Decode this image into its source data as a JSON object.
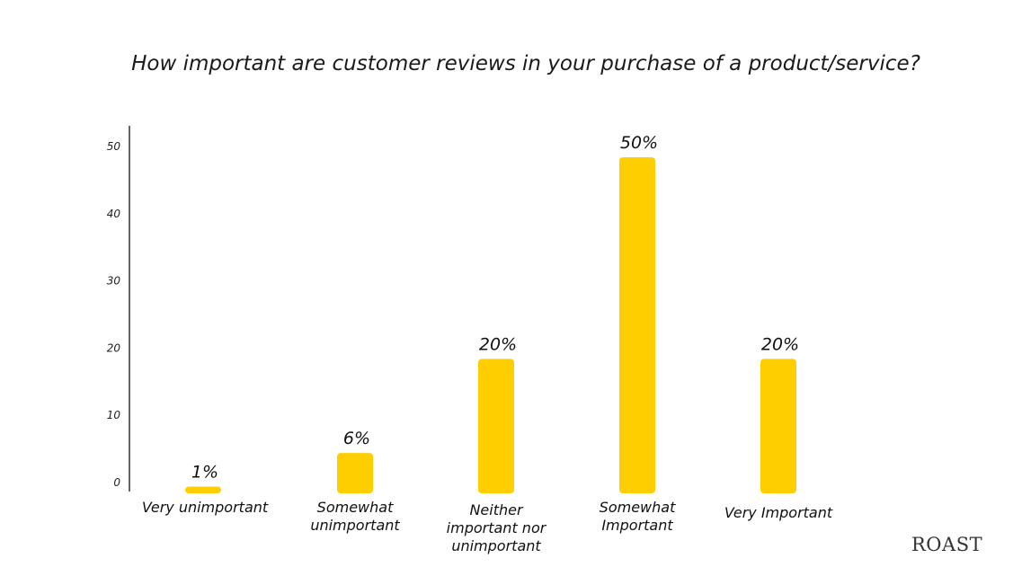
{
  "chart_data": {
    "type": "bar",
    "title": "How important are customer reviews in your purchase of a product/service?",
    "categories": [
      "Very unimportant",
      "Somewhat unimportant",
      "Neither important nor unimportant",
      "Somewhat Important",
      "Very Important"
    ],
    "category_lines": [
      [
        "Very unimportant"
      ],
      [
        "Somewhat",
        "unimportant"
      ],
      [
        "Neither",
        "important nor",
        "unimportant"
      ],
      [
        "Somewhat",
        "Important"
      ],
      [
        "Very Important"
      ]
    ],
    "values": [
      1,
      6,
      20,
      50,
      20
    ],
    "data_labels": [
      "1%",
      "6%",
      "20%",
      "50%",
      "20%"
    ],
    "yticks": [
      0,
      10,
      20,
      30,
      40,
      50
    ],
    "ylim": [
      0,
      55
    ],
    "xlabel": "",
    "ylabel": "",
    "grid": false,
    "bar_color": "#FFCE00"
  },
  "logo": "ROAST"
}
